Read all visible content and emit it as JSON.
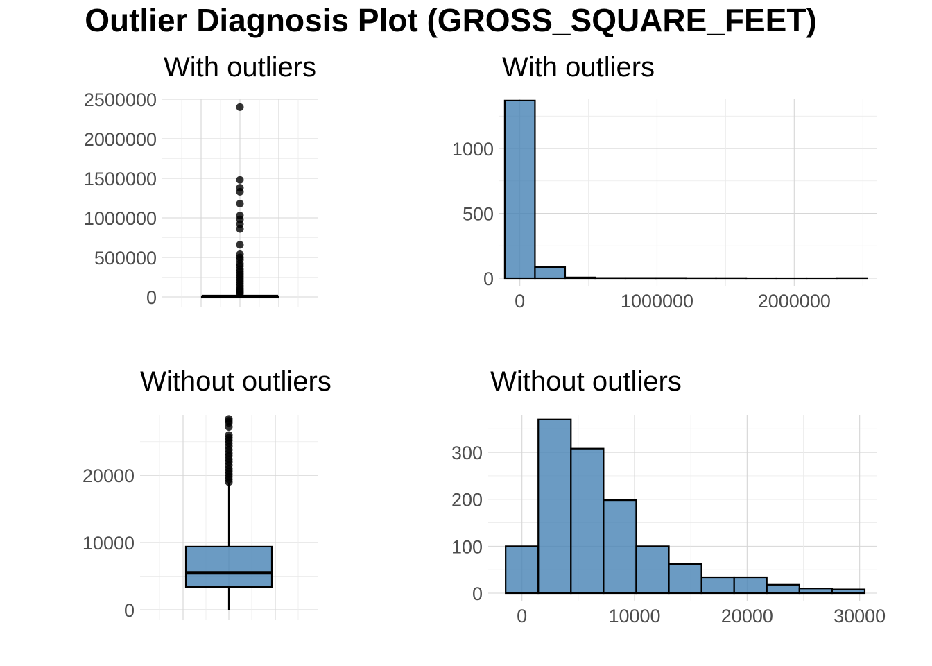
{
  "title": "Outlier Diagnosis Plot (GROSS_SQUARE_FEET)",
  "colors": {
    "fill": "#4682b4",
    "stroke": "#000000"
  },
  "chart_data": [
    {
      "type": "box",
      "title": "With outliers",
      "ylim": [
        0,
        2500000
      ],
      "yticks": [
        0,
        500000,
        1000000,
        1500000,
        2000000,
        2500000
      ],
      "ytick_labels": [
        "0",
        "500000",
        "1000000",
        "1500000",
        "2000000",
        "2500000"
      ],
      "box": {
        "q1": 3300,
        "median": 5400,
        "q3": 9300,
        "whisker_low": 0,
        "whisker_high": 28000
      },
      "outliers": [
        2400000,
        1480000,
        1380000,
        1330000,
        1180000,
        1030000,
        980000,
        920000,
        860000,
        660000,
        540000,
        500000,
        470000,
        420000,
        390000,
        350000,
        320000,
        290000,
        260000,
        230000,
        200000,
        170000,
        140000,
        110000,
        90000,
        70000,
        55000,
        40000
      ]
    },
    {
      "type": "bar",
      "title": "With outliers",
      "ylim": [
        0,
        1380
      ],
      "xlim": [
        -150000,
        2600000
      ],
      "yticks": [
        0,
        500,
        1000
      ],
      "ytick_labels": [
        "0",
        "500",
        "1000"
      ],
      "xticks": [
        0,
        1000000,
        2000000
      ],
      "xtick_labels": [
        "0",
        "1000000",
        "2000000"
      ],
      "bins": [
        {
          "x0": -110000,
          "x1": 110000,
          "count": 1370
        },
        {
          "x0": 110000,
          "x1": 330000,
          "count": 85
        },
        {
          "x0": 330000,
          "x1": 550000,
          "count": 6
        },
        {
          "x0": 550000,
          "x1": 770000,
          "count": 2
        },
        {
          "x0": 770000,
          "x1": 990000,
          "count": 2
        },
        {
          "x0": 990000,
          "x1": 1210000,
          "count": 2
        },
        {
          "x0": 1210000,
          "x1": 1430000,
          "count": 1
        },
        {
          "x0": 1430000,
          "x1": 1650000,
          "count": 1
        },
        {
          "x0": 1650000,
          "x1": 1870000,
          "count": 0
        },
        {
          "x0": 1870000,
          "x1": 2090000,
          "count": 0
        },
        {
          "x0": 2090000,
          "x1": 2310000,
          "count": 0
        },
        {
          "x0": 2310000,
          "x1": 2530000,
          "count": 1
        }
      ]
    },
    {
      "type": "box",
      "title": "Without outliers",
      "ylim": [
        0,
        29000
      ],
      "yticks": [
        0,
        10000,
        20000
      ],
      "ytick_labels": [
        "0",
        "10000",
        "20000"
      ],
      "box": {
        "q1": 3400,
        "median": 5500,
        "q3": 9400,
        "whisker_low": 0,
        "whisker_high": 18900
      },
      "outliers": [
        19000,
        19400,
        19800,
        20200,
        20600,
        21000,
        21500,
        22000,
        22400,
        22900,
        23300,
        23800,
        24300,
        24800,
        25200,
        25600,
        26000,
        27200,
        27800,
        28100,
        28400
      ]
    },
    {
      "type": "bar",
      "title": "Without outliers",
      "ylim": [
        0,
        380
      ],
      "xlim": [
        -3000,
        31500
      ],
      "yticks": [
        0,
        100,
        200,
        300
      ],
      "ytick_labels": [
        "0",
        "100",
        "200",
        "300"
      ],
      "xticks": [
        0,
        10000,
        20000,
        30000
      ],
      "xtick_labels": [
        "0",
        "10000",
        "20000",
        "30000"
      ],
      "bins": [
        {
          "x0": -1450,
          "x1": 1450,
          "count": 100
        },
        {
          "x0": 1450,
          "x1": 4350,
          "count": 370
        },
        {
          "x0": 4350,
          "x1": 7250,
          "count": 308
        },
        {
          "x0": 7250,
          "x1": 10150,
          "count": 198
        },
        {
          "x0": 10150,
          "x1": 13050,
          "count": 100
        },
        {
          "x0": 13050,
          "x1": 15950,
          "count": 62
        },
        {
          "x0": 15950,
          "x1": 18850,
          "count": 34
        },
        {
          "x0": 18850,
          "x1": 21750,
          "count": 34
        },
        {
          "x0": 21750,
          "x1": 24650,
          "count": 18
        },
        {
          "x0": 24650,
          "x1": 27550,
          "count": 10
        },
        {
          "x0": 27550,
          "x1": 30450,
          "count": 8
        }
      ]
    }
  ]
}
